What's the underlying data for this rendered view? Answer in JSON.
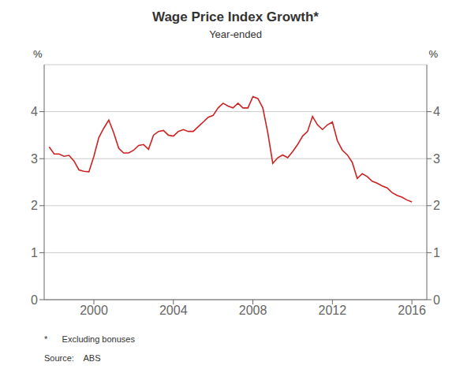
{
  "chart_data": {
    "type": "line",
    "title": "Wage Price Index Growth*",
    "subtitle": "Year-ended",
    "ylabel": "%",
    "y2label": "%",
    "annotations": [
      "*      Excluding bonuses",
      "Source:    ABS"
    ],
    "color": "#cc2222",
    "grid": true,
    "xlim": [
      1997.5,
      2016.75
    ],
    "xticks": [
      2000,
      2004,
      2008,
      2012,
      2016
    ],
    "ylim": [
      0,
      5
    ],
    "yticks": [
      0,
      1,
      2,
      3,
      4
    ],
    "y2lim": [
      0,
      5
    ],
    "y2ticks": [
      0,
      1,
      2,
      3,
      4
    ],
    "x": [
      1997.75,
      1998.0,
      1998.25,
      1998.5,
      1998.75,
      1999.0,
      1999.25,
      1999.5,
      1999.75,
      2000.0,
      2000.25,
      2000.5,
      2000.75,
      2001.0,
      2001.25,
      2001.5,
      2001.75,
      2002.0,
      2002.25,
      2002.5,
      2002.75,
      2003.0,
      2003.25,
      2003.5,
      2003.75,
      2004.0,
      2004.25,
      2004.5,
      2004.75,
      2005.0,
      2005.25,
      2005.5,
      2005.75,
      2006.0,
      2006.25,
      2006.5,
      2006.75,
      2007.0,
      2007.25,
      2007.5,
      2007.75,
      2008.0,
      2008.25,
      2008.5,
      2008.75,
      2009.0,
      2009.25,
      2009.5,
      2009.75,
      2010.0,
      2010.25,
      2010.5,
      2010.75,
      2011.0,
      2011.25,
      2011.5,
      2011.75,
      2012.0,
      2012.25,
      2012.5,
      2012.75,
      2013.0,
      2013.25,
      2013.5,
      2013.75,
      2014.0,
      2014.25,
      2014.5,
      2014.75,
      2015.0,
      2015.25,
      2015.5,
      2015.75,
      2016.0
    ],
    "values": [
      3.25,
      3.1,
      3.1,
      3.05,
      3.07,
      2.95,
      2.76,
      2.73,
      2.72,
      3.05,
      3.45,
      3.65,
      3.82,
      3.55,
      3.22,
      3.12,
      3.12,
      3.18,
      3.28,
      3.3,
      3.2,
      3.5,
      3.58,
      3.6,
      3.5,
      3.48,
      3.58,
      3.62,
      3.58,
      3.58,
      3.68,
      3.78,
      3.88,
      3.92,
      4.08,
      4.18,
      4.12,
      4.08,
      4.18,
      4.08,
      4.08,
      4.32,
      4.28,
      4.08,
      3.55,
      2.9,
      3.02,
      3.08,
      3.02,
      3.15,
      3.3,
      3.48,
      3.58,
      3.9,
      3.72,
      3.62,
      3.72,
      3.78,
      3.38,
      3.18,
      3.08,
      2.92,
      2.58,
      2.68,
      2.62,
      2.52,
      2.48,
      2.42,
      2.38,
      2.28,
      2.22,
      2.18,
      2.12,
      2.08
    ]
  }
}
